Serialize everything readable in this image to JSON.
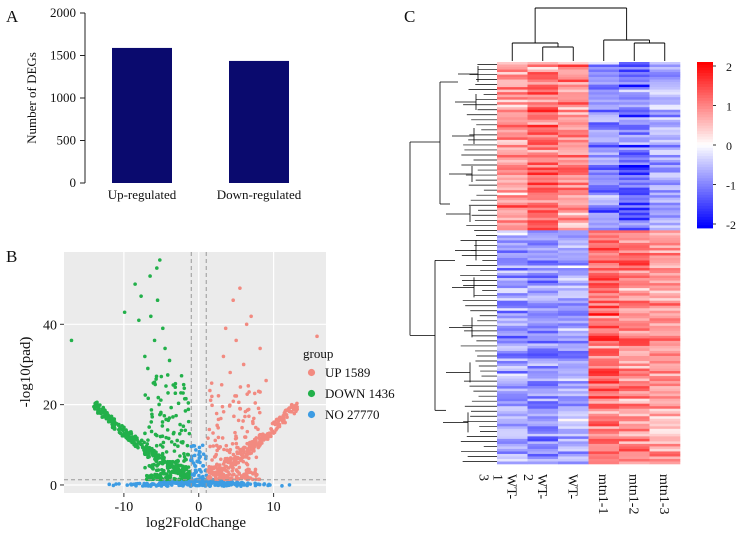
{
  "panels": {
    "a": "A",
    "b": "B",
    "c": "C"
  },
  "chart_data": [
    {
      "panel": "A",
      "type": "bar",
      "categories": [
        "Up-regulated",
        "Down-regulated"
      ],
      "values": [
        1589,
        1436
      ],
      "ylabel": "Number of DEGs",
      "xlabel": "",
      "ylim": [
        0,
        2000
      ],
      "yticks": [
        "0",
        "500",
        "1000",
        "1500",
        "2000"
      ],
      "bar_color": "#0a0a6e"
    },
    {
      "panel": "B",
      "type": "scatter",
      "xlabel": "log2FoldChange",
      "ylabel": "-log10(pad)",
      "xlim": [
        -18,
        17
      ],
      "ylim": [
        -2,
        58
      ],
      "xticks": [
        "-10",
        "0",
        "10"
      ],
      "yticks": [
        "0",
        "20",
        "40"
      ],
      "vlines": [
        -1,
        1
      ],
      "hline": 1.3,
      "legend_title": "group",
      "legend": [
        {
          "label": "UP 1589",
          "color": "#f28a80",
          "count": 1589
        },
        {
          "label": "DOWN 1436",
          "color": "#22b04a",
          "count": 1436
        },
        {
          "label": "NO 27770",
          "color": "#3d9ce3",
          "count": 27770
        }
      ],
      "highlight_points": {
        "down": [
          [
            -17,
            36
          ],
          [
            -5.2,
            56
          ],
          [
            -5.6,
            54
          ],
          [
            -6.5,
            52
          ],
          [
            -8.5,
            50
          ],
          [
            -7.7,
            47
          ],
          [
            -5.5,
            46
          ],
          [
            -9.9,
            43
          ],
          [
            -6.4,
            42
          ],
          [
            -8.0,
            41
          ],
          [
            -4.8,
            39
          ],
          [
            -5.9,
            36
          ],
          [
            -4.5,
            34
          ],
          [
            -7.2,
            32
          ],
          [
            -3.9,
            31
          ],
          [
            -6.8,
            29
          ],
          [
            -5.0,
            27
          ]
        ],
        "up": [
          [
            15.8,
            37
          ],
          [
            5.5,
            49
          ],
          [
            4.6,
            46
          ],
          [
            7.0,
            42
          ],
          [
            6.4,
            40
          ],
          [
            3.6,
            39
          ],
          [
            5.0,
            36
          ],
          [
            8.2,
            34
          ],
          [
            3.3,
            32
          ],
          [
            6.0,
            30
          ],
          [
            4.2,
            28
          ],
          [
            9.0,
            26
          ]
        ]
      }
    },
    {
      "panel": "C",
      "type": "heatmap",
      "columns": [
        "WT-1",
        "WT-2",
        "WT-3",
        "mtn1-1",
        "mtn1-2",
        "mtn1-3"
      ],
      "column_label_lines": [
        [
          "WT-",
          "1",
          "3"
        ],
        [
          "WT-",
          "2"
        ],
        [
          "WT-"
        ],
        [
          "mtn1-1"
        ],
        [
          "mtn1-2"
        ],
        [
          "mtn1-3"
        ]
      ],
      "column_means_top_cluster": [
        0.8,
        1.1,
        0.9,
        -0.9,
        -1.2,
        -0.7
      ],
      "column_means_bottom_cluster": [
        -0.8,
        -0.9,
        -0.8,
        1.2,
        1.0,
        0.8
      ],
      "top_cluster_fraction": 0.42,
      "colorscale": {
        "low": "#0000ff",
        "mid": "#ffffff",
        "high": "#ff0000",
        "min": -2,
        "max": 2
      },
      "colorbar_ticks": [
        "2",
        "1",
        "0",
        "-1",
        "-2"
      ]
    }
  ]
}
